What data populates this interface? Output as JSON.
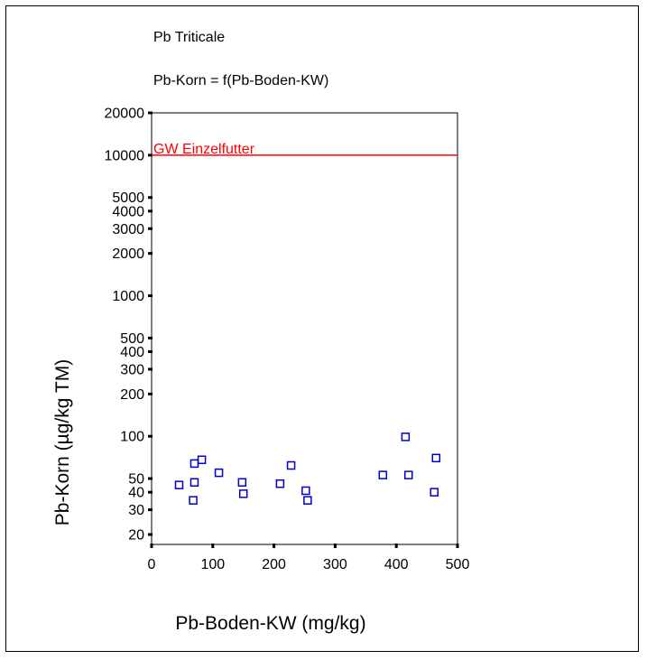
{
  "chart_data": {
    "type": "scatter",
    "title": "Pb Triticale",
    "subtitle": "Pb-Korn = f(Pb-Boden-KW)",
    "xlabel": "Pb-Boden-KW (mg/kg)",
    "ylabel": "Pb-Korn (µg/kg TM)",
    "xlim": [
      0,
      500
    ],
    "ylim": [
      17,
      20000
    ],
    "y_scale": "log",
    "grid": false,
    "x_ticks": [
      0,
      100,
      200,
      300,
      400,
      500
    ],
    "y_ticks": [
      20,
      30,
      40,
      50,
      100,
      200,
      300,
      400,
      500,
      1000,
      2000,
      3000,
      4000,
      5000,
      10000,
      20000
    ],
    "reference_line": {
      "label": "GW Einzelfutter",
      "y": 10000,
      "color": "#ff0000"
    },
    "marker_color": "#0000cc",
    "marker": "hollow-square",
    "series": [
      {
        "x": [
          45,
          68,
          70,
          70,
          82,
          110,
          148,
          150,
          210,
          228,
          252,
          255,
          378,
          415,
          420,
          462,
          465
        ],
        "y": [
          45,
          35,
          64,
          47,
          68,
          55,
          47,
          39,
          46,
          62,
          41,
          35,
          53,
          99,
          53,
          40,
          70
        ]
      }
    ]
  }
}
